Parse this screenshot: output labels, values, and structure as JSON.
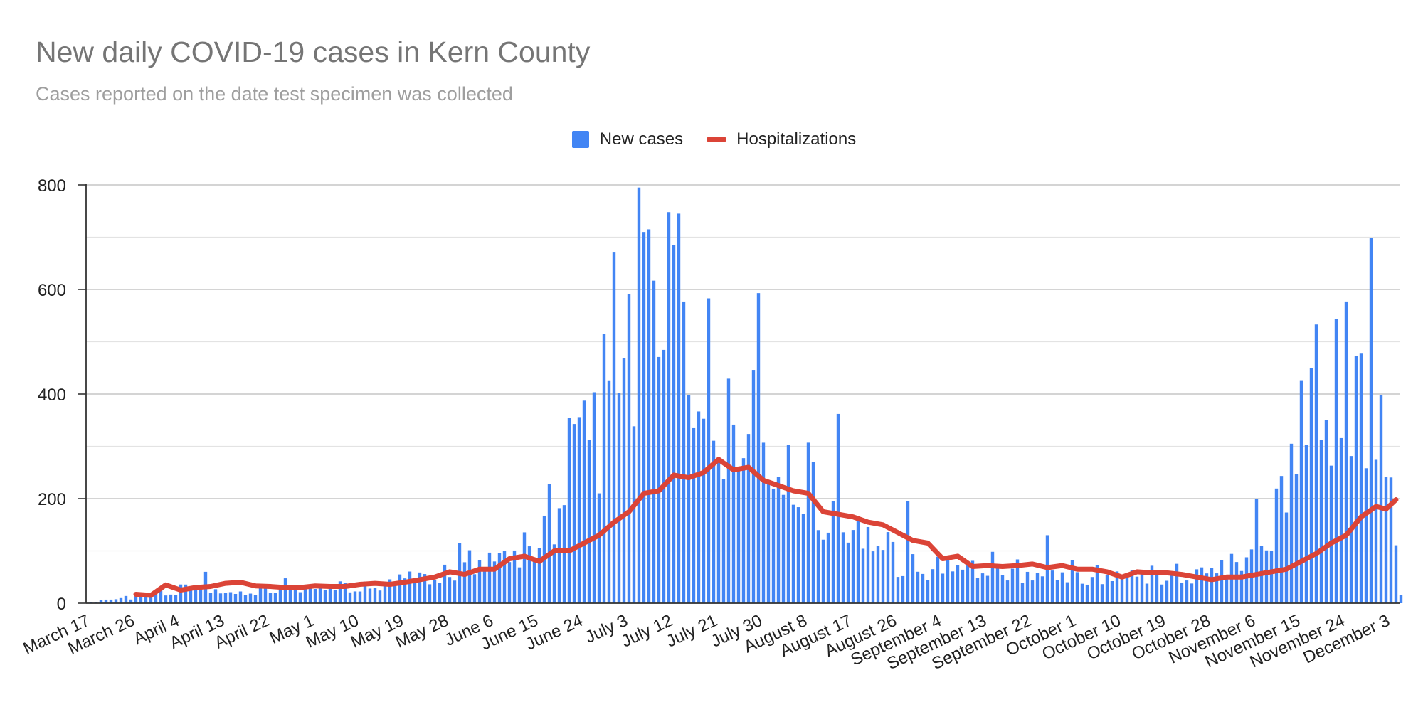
{
  "chart_data": {
    "type": "bar",
    "title": "New daily COVID-19 cases in Kern County",
    "subtitle": "Cases reported on the date test specimen was collected",
    "xlabel": "",
    "ylabel": "",
    "ylim": [
      0,
      800
    ],
    "y_ticks": [
      0,
      200,
      400,
      600,
      800
    ],
    "x_tick_labels": [
      "March 17",
      "March 26",
      "April 4",
      "April 13",
      "April 22",
      "May 1",
      "May 10",
      "May 19",
      "May 28",
      "June 6",
      "June 15",
      "June 24",
      "July 3",
      "July 12",
      "July 21",
      "July 30",
      "August 8",
      "August 17",
      "August 26",
      "September 4",
      "September 13",
      "September 22",
      "October 1",
      "October 10",
      "October 19",
      "October 28",
      "November 6",
      "November 15",
      "November 24",
      "December 3"
    ],
    "grid": true,
    "legend_position": "top",
    "colors": {
      "cases": "#4285f4",
      "hospitalizations": "#db4437"
    },
    "series": [
      {
        "name": "New cases",
        "type": "bar",
        "anchors": [
          [
            "March 17",
            2
          ],
          [
            "March 20",
            7
          ],
          [
            "March 23",
            12
          ],
          [
            "March 26",
            12
          ],
          [
            "March 29",
            22
          ],
          [
            "April 1",
            22
          ],
          [
            "April 4",
            30
          ],
          [
            "April 7",
            45
          ],
          [
            "April 10",
            30
          ],
          [
            "April 13",
            22
          ],
          [
            "April 16",
            20
          ],
          [
            "April 19",
            25
          ],
          [
            "April 22",
            32
          ],
          [
            "April 25",
            38
          ],
          [
            "April 28",
            30
          ],
          [
            "May 1",
            35
          ],
          [
            "May 4",
            35
          ],
          [
            "May 7",
            38
          ],
          [
            "May 10",
            30
          ],
          [
            "May 13",
            38
          ],
          [
            "May 16",
            40
          ],
          [
            "May 19",
            65
          ],
          [
            "May 22",
            55
          ],
          [
            "May 25",
            55
          ],
          [
            "May 28",
            60
          ],
          [
            "May 31",
            80
          ],
          [
            "June 3",
            95
          ],
          [
            "June 6",
            90
          ],
          [
            "June 9",
            110
          ],
          [
            "June 12",
            110
          ],
          [
            "June 15",
            160
          ],
          [
            "June 18",
            200
          ],
          [
            "June 21",
            320
          ],
          [
            "June 24",
            430
          ],
          [
            "June 27",
            380
          ],
          [
            "June 30",
            550
          ],
          [
            "July 3",
            480
          ],
          [
            "July 6",
            650
          ],
          [
            "July 9",
            580
          ],
          [
            "July 12",
            620
          ],
          [
            "July 15",
            470
          ],
          [
            "July 18",
            400
          ],
          [
            "July 21",
            480
          ],
          [
            "July 24",
            320
          ],
          [
            "July 27",
            420
          ],
          [
            "July 30",
            300
          ],
          [
            "August 2",
            250
          ],
          [
            "August 5",
            260
          ],
          [
            "August 8",
            270
          ],
          [
            "August 11",
            200
          ],
          [
            "August 14",
            140
          ],
          [
            "August 17",
            160
          ],
          [
            "August 20",
            130
          ],
          [
            "August 23",
            140
          ],
          [
            "August 26",
            90
          ],
          [
            "August 29",
            75
          ],
          [
            "September 1",
            65
          ],
          [
            "September 4",
            85
          ],
          [
            "September 7",
            80
          ],
          [
            "September 10",
            75
          ],
          [
            "September 13",
            80
          ],
          [
            "September 16",
            75
          ],
          [
            "September 19",
            70
          ],
          [
            "September 22",
            60
          ],
          [
            "September 25",
            55
          ],
          [
            "September 28",
            70
          ],
          [
            "October 1",
            65
          ],
          [
            "October 4",
            55
          ],
          [
            "October 7",
            65
          ],
          [
            "October 10",
            55
          ],
          [
            "October 13",
            70
          ],
          [
            "October 16",
            60
          ],
          [
            "October 19",
            60
          ],
          [
            "October 22",
            60
          ],
          [
            "October 25",
            60
          ],
          [
            "October 28",
            75
          ],
          [
            "October 31",
            80
          ],
          [
            "November 3",
            90
          ],
          [
            "November 6",
            140
          ],
          [
            "November 9",
            180
          ],
          [
            "November 12",
            240
          ],
          [
            "November 15",
            380
          ],
          [
            "November 18",
            450
          ],
          [
            "November 21",
            340
          ],
          [
            "November 24",
            460
          ],
          [
            "November 27",
            420
          ],
          [
            "November 30",
            380
          ],
          [
            "December 3",
            250
          ],
          [
            "December 5",
            20
          ]
        ],
        "peaks": [
          [
            "July 5",
            795
          ],
          [
            "July 6",
            710
          ],
          [
            "July 11",
            748
          ],
          [
            "July 13",
            745
          ],
          [
            "July 29",
            593
          ],
          [
            "June 30",
            672
          ],
          [
            "July 19",
            583
          ],
          [
            "August 14",
            362
          ],
          [
            "November 29",
            698
          ],
          [
            "November 24",
            577
          ],
          [
            "November 22",
            543
          ],
          [
            "November 18",
            533
          ],
          [
            "November 13",
            305
          ],
          [
            "November 6",
            200
          ],
          [
            "August 28",
            195
          ],
          [
            "September 25",
            130
          ],
          [
            "April 9",
            60
          ],
          [
            "May 30",
            115
          ]
        ]
      },
      {
        "name": "Hospitalizations",
        "type": "line",
        "points": [
          [
            "March 26",
            17
          ],
          [
            "March 29",
            15
          ],
          [
            "April 1",
            35
          ],
          [
            "April 4",
            25
          ],
          [
            "April 7",
            30
          ],
          [
            "April 10",
            32
          ],
          [
            "April 13",
            38
          ],
          [
            "April 16",
            40
          ],
          [
            "April 19",
            33
          ],
          [
            "April 22",
            32
          ],
          [
            "April 25",
            30
          ],
          [
            "April 28",
            30
          ],
          [
            "May 1",
            33
          ],
          [
            "May 4",
            32
          ],
          [
            "May 7",
            32
          ],
          [
            "May 10",
            36
          ],
          [
            "May 13",
            38
          ],
          [
            "May 16",
            36
          ],
          [
            "May 19",
            40
          ],
          [
            "May 22",
            45
          ],
          [
            "May 25",
            50
          ],
          [
            "May 28",
            60
          ],
          [
            "May 31",
            55
          ],
          [
            "June 3",
            65
          ],
          [
            "June 6",
            65
          ],
          [
            "June 9",
            85
          ],
          [
            "June 12",
            90
          ],
          [
            "June 15",
            80
          ],
          [
            "June 18",
            100
          ],
          [
            "June 21",
            100
          ],
          [
            "June 24",
            115
          ],
          [
            "June 27",
            130
          ],
          [
            "June 30",
            155
          ],
          [
            "July 3",
            175
          ],
          [
            "July 6",
            210
          ],
          [
            "July 9",
            215
          ],
          [
            "July 12",
            245
          ],
          [
            "July 15",
            240
          ],
          [
            "July 18",
            250
          ],
          [
            "July 21",
            275
          ],
          [
            "July 24",
            255
          ],
          [
            "July 27",
            260
          ],
          [
            "July 30",
            235
          ],
          [
            "August 2",
            225
          ],
          [
            "August 5",
            215
          ],
          [
            "August 8",
            210
          ],
          [
            "August 11",
            175
          ],
          [
            "August 14",
            170
          ],
          [
            "August 17",
            165
          ],
          [
            "August 20",
            155
          ],
          [
            "August 23",
            150
          ],
          [
            "August 26",
            135
          ],
          [
            "August 29",
            120
          ],
          [
            "September 1",
            115
          ],
          [
            "September 4",
            85
          ],
          [
            "September 7",
            90
          ],
          [
            "September 10",
            70
          ],
          [
            "September 13",
            72
          ],
          [
            "September 16",
            70
          ],
          [
            "September 19",
            72
          ],
          [
            "September 22",
            75
          ],
          [
            "September 25",
            68
          ],
          [
            "September 28",
            72
          ],
          [
            "October 1",
            65
          ],
          [
            "October 4",
            65
          ],
          [
            "October 7",
            60
          ],
          [
            "October 10",
            50
          ],
          [
            "October 13",
            60
          ],
          [
            "October 16",
            58
          ],
          [
            "October 19",
            58
          ],
          [
            "October 22",
            55
          ],
          [
            "October 25",
            50
          ],
          [
            "October 28",
            45
          ],
          [
            "October 31",
            50
          ],
          [
            "November 3",
            50
          ],
          [
            "November 6",
            55
          ],
          [
            "November 9",
            60
          ],
          [
            "November 12",
            65
          ],
          [
            "November 15",
            80
          ],
          [
            "November 18",
            95
          ],
          [
            "November 21",
            115
          ],
          [
            "November 24",
            130
          ],
          [
            "November 27",
            165
          ],
          [
            "November 30",
            185
          ],
          [
            "December 2",
            180
          ],
          [
            "December 4",
            198
          ]
        ]
      }
    ]
  }
}
